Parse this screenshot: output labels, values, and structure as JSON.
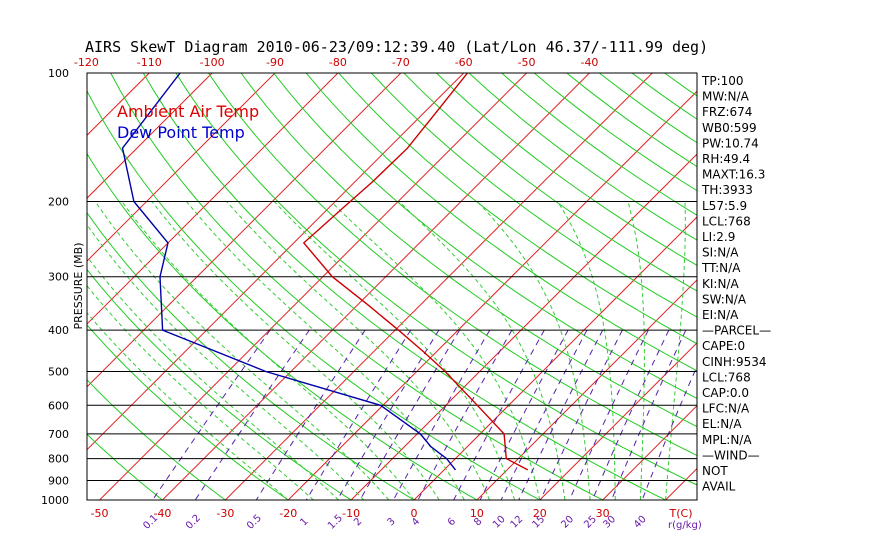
{
  "chart_data": {
    "type": "skewt",
    "title": "AIRS SkewT Diagram 2010-06-23/09:12:39.40 (Lat/Lon 46.37/-111.99 deg)",
    "ylabel": "PRESSURE (MB)",
    "pressure_ticks": [
      "100",
      "200",
      "300",
      "400",
      "500",
      "600",
      "700",
      "800",
      "900",
      "1000"
    ],
    "pressure_levels": [
      100,
      200,
      300,
      400,
      500,
      600,
      700,
      800,
      900,
      1000
    ],
    "top_temp_ticks": [
      "-120",
      "-110",
      "-100",
      "-90",
      "-80",
      "-70",
      "-60",
      "-50",
      "-40"
    ],
    "bottom_temp_ticks": [
      "-50",
      "-40",
      "-30",
      "-20",
      "-10",
      "0",
      "10",
      "20",
      "30"
    ],
    "bottom_unit_label": "T(C)",
    "mixing_ratio_ticks": [
      "0.1",
      "0.2",
      "0.5",
      "1",
      "1.5",
      "2",
      "3",
      "4",
      "6",
      "8",
      "10",
      "12",
      "15",
      "20",
      "25",
      "30",
      "40"
    ],
    "mixing_ratio_unit": "r(g/kg)",
    "temp_range_c_at_1000mb": [
      -52,
      45
    ],
    "pressure_range_mb": [
      100,
      1000
    ],
    "legend": [
      {
        "label": "Ambient Air Temp",
        "color": "#dd0000"
      },
      {
        "label": "Dew Point Temp",
        "color": "#0000cc"
      }
    ],
    "series": [
      {
        "name": "Ambient Air Temp",
        "color": "#cc0000",
        "points": [
          {
            "p": 100,
            "t": -59.4
          },
          {
            "p": 120,
            "t": -58.3
          },
          {
            "p": 150,
            "t": -57.0
          },
          {
            "p": 180,
            "t": -57.2
          },
          {
            "p": 200,
            "t": -57.6
          },
          {
            "p": 250,
            "t": -58.4
          },
          {
            "p": 300,
            "t": -48.5
          },
          {
            "p": 350,
            "t": -38.2
          },
          {
            "p": 400,
            "t": -29.5
          },
          {
            "p": 450,
            "t": -22.0
          },
          {
            "p": 500,
            "t": -15.5
          },
          {
            "p": 600,
            "t": -5.0
          },
          {
            "p": 700,
            "t": 3.8
          },
          {
            "p": 800,
            "t": 8.1
          },
          {
            "p": 850,
            "t": 13.3
          }
        ]
      },
      {
        "name": "Dew Point Temp",
        "color": "#0000aa",
        "points": [
          {
            "p": 100,
            "t": -105.1
          },
          {
            "p": 150,
            "t": -102.3
          },
          {
            "p": 200,
            "t": -92.0
          },
          {
            "p": 250,
            "t": -80.0
          },
          {
            "p": 300,
            "t": -75.9
          },
          {
            "p": 400,
            "t": -67.0
          },
          {
            "p": 500,
            "t": -44.0
          },
          {
            "p": 600,
            "t": -20.4
          },
          {
            "p": 700,
            "t": -9.5
          },
          {
            "p": 750,
            "t": -5.8
          },
          {
            "p": 800,
            "t": -1.4
          },
          {
            "p": 850,
            "t": 1.8
          }
        ]
      }
    ],
    "grid": true
  },
  "indices": [
    "TP:100",
    "MW:N/A",
    "FRZ:674",
    "WB0:599",
    "PW:10.74",
    "RH:49.4",
    "MAXT:16.3",
    "TH:3933",
    "L57:5.9",
    "LCL:768",
    "LI:2.9",
    "SI:N/A",
    "TT:N/A",
    "KI:N/A",
    "SW:N/A",
    "EI:N/A",
    "—PARCEL—",
    "CAPE:0",
    "CINH:9534",
    "LCL:768",
    "CAP:0.0",
    "LFC:N/A",
    "EL:N/A",
    "MPL:N/A",
    "—WIND—",
    "NOT",
    "AVAIL"
  ],
  "colors": {
    "isotherm": "#e02020",
    "dry_adiabat": "#22cc22",
    "moist_adiabat": "#33cc33",
    "mixing_ratio": "#5522aa",
    "isobar": "#000000"
  }
}
